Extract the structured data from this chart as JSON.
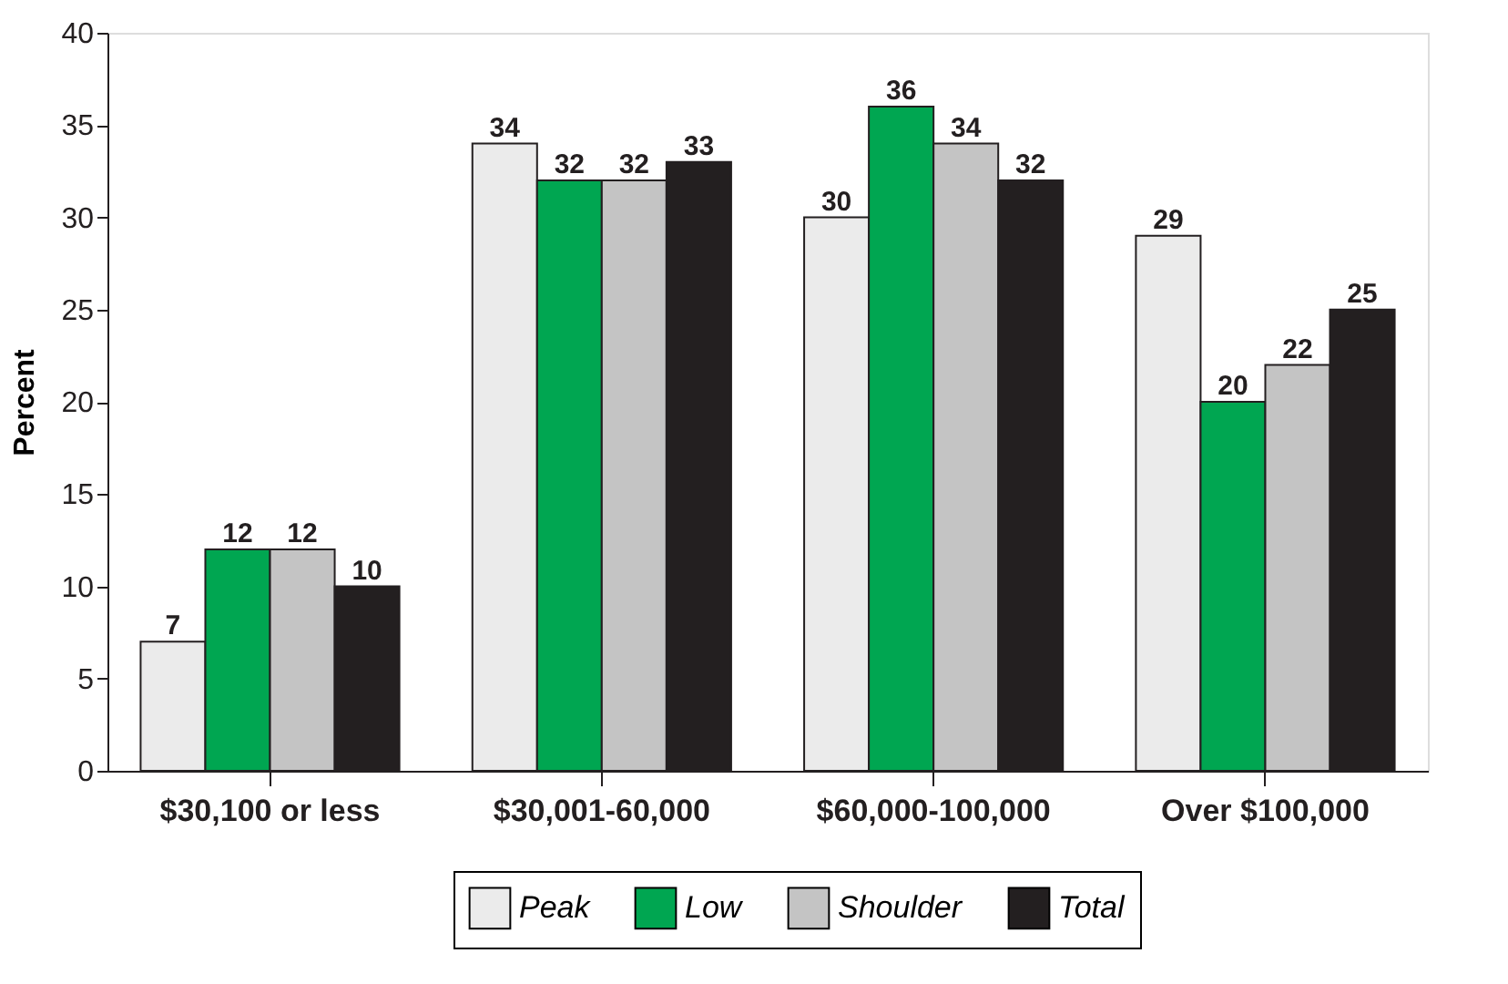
{
  "chart_data": {
    "type": "bar",
    "ylabel": "Percent",
    "categories": [
      "$30,100 or less",
      "$30,001-60,000",
      "$60,000-100,000",
      "Over $100,000"
    ],
    "series": [
      {
        "name": "Peak",
        "color": "#ebebeb",
        "values": [
          7,
          34,
          30,
          29
        ]
      },
      {
        "name": "Low",
        "color": "#00a651",
        "values": [
          12,
          32,
          36,
          20
        ]
      },
      {
        "name": "Shoulder",
        "color": "#c4c4c4",
        "values": [
          12,
          32,
          34,
          22
        ]
      },
      {
        "name": "Total",
        "color": "#231f20",
        "values": [
          10,
          33,
          32,
          25
        ]
      }
    ],
    "ylim": [
      0,
      40
    ],
    "yticks": [
      0,
      5,
      10,
      15,
      20,
      25,
      30,
      35,
      40
    ],
    "grid": false,
    "legend": "bottom",
    "data_labels": true
  }
}
